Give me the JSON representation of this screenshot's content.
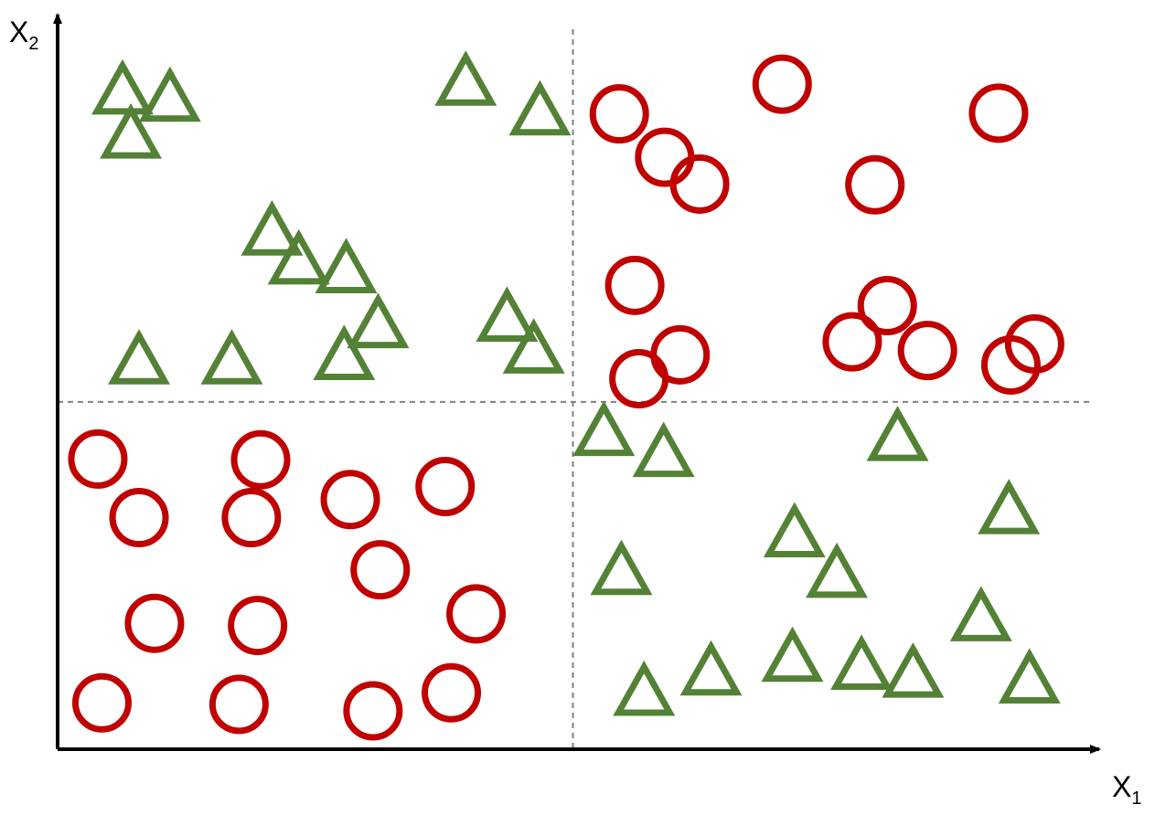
{
  "chart_data": {
    "type": "scatter",
    "title": "",
    "xlabel": {
      "base": "X",
      "sub": "1"
    },
    "ylabel": {
      "base": "X",
      "sub": "2"
    },
    "xlim": [
      0,
      100
    ],
    "ylim": [
      0,
      100
    ],
    "grid": false,
    "ticks": false,
    "dividers": {
      "x": 50,
      "y": 48
    },
    "colors": {
      "triangle": "#538135",
      "circle": "#c00000",
      "axis": "#000000",
      "divider": "#808080"
    },
    "series": [
      {
        "marker": "triangle",
        "points": [
          [
            6.3,
            90.7
          ],
          [
            10.9,
            89.7
          ],
          [
            7.1,
            84.6
          ],
          [
            39.6,
            91.9
          ],
          [
            46.8,
            87.8
          ],
          [
            20.8,
            71.2
          ],
          [
            23.4,
            67.2
          ],
          [
            28.0,
            66.0
          ],
          [
            31.1,
            58.4
          ],
          [
            43.6,
            59.3
          ],
          [
            46.2,
            54.9
          ],
          [
            7.9,
            53.4
          ],
          [
            16.9,
            53.4
          ],
          [
            27.8,
            54.0
          ],
          [
            53.0,
            43.5
          ],
          [
            58.8,
            40.6
          ],
          [
            81.5,
            42.8
          ],
          [
            92.3,
            32.7
          ],
          [
            71.5,
            29.5
          ],
          [
            75.6,
            23.9
          ],
          [
            54.7,
            24.3
          ],
          [
            89.6,
            17.9
          ],
          [
            56.9,
            7.6
          ],
          [
            63.4,
            10.4
          ],
          [
            71.3,
            12.3
          ],
          [
            78.0,
            11.2
          ],
          [
            83.0,
            10.1
          ],
          [
            94.3,
            9.3
          ]
        ]
      },
      {
        "marker": "circle",
        "points": [
          [
            54.5,
            87.8
          ],
          [
            58.9,
            81.8
          ],
          [
            62.3,
            78.1
          ],
          [
            70.3,
            91.9
          ],
          [
            79.3,
            78.0
          ],
          [
            91.3,
            87.9
          ],
          [
            56.0,
            64.1
          ],
          [
            56.4,
            51.2
          ],
          [
            60.4,
            54.5
          ],
          [
            77.1,
            56.3
          ],
          [
            80.5,
            61.3
          ],
          [
            84.4,
            55.1
          ],
          [
            92.5,
            53.1
          ],
          [
            94.8,
            56.0
          ],
          [
            3.9,
            40.1
          ],
          [
            7.9,
            32.0
          ],
          [
            19.7,
            40.0
          ],
          [
            18.8,
            32.0
          ],
          [
            28.4,
            34.5
          ],
          [
            37.6,
            36.3
          ],
          [
            31.3,
            24.8
          ],
          [
            40.6,
            18.7
          ],
          [
            9.4,
            17.4
          ],
          [
            19.4,
            17.1
          ],
          [
            4.3,
            6.4
          ],
          [
            17.6,
            6.2
          ],
          [
            30.6,
            5.3
          ],
          [
            38.2,
            7.8
          ]
        ]
      }
    ]
  }
}
